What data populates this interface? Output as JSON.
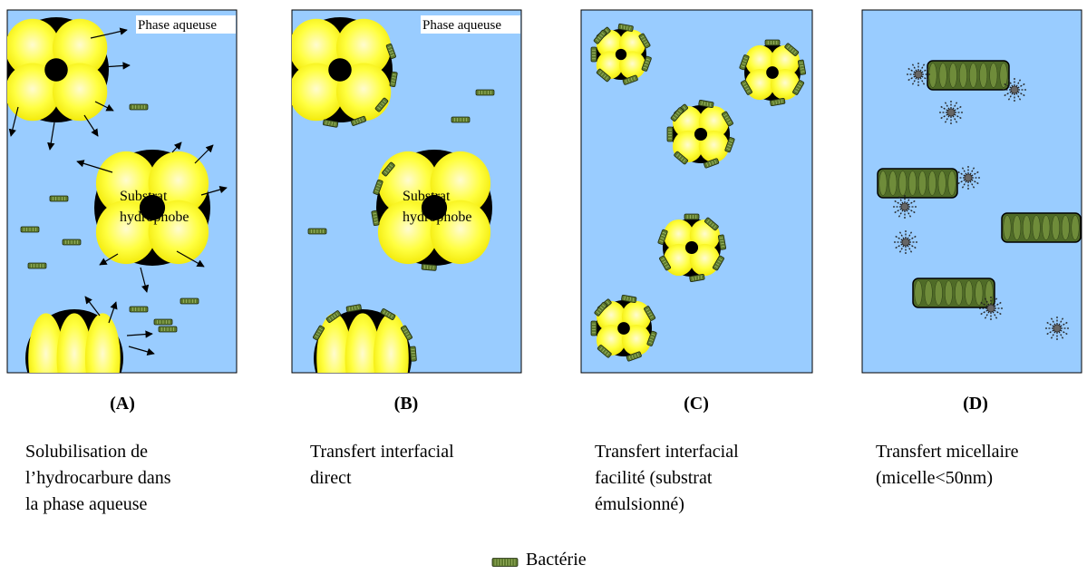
{
  "panels": [
    {
      "letter": "(A)",
      "phase_label": "Phase aqueuse",
      "substrate_label": [
        "Substrat",
        "hydrophobe"
      ],
      "caption": [
        "Solubilisation de",
        "l’hydrocarbure dans",
        "la phase aqueuse"
      ]
    },
    {
      "letter": "(B)",
      "phase_label": "Phase aqueuse",
      "substrate_label": [
        "Substrat",
        "hydrophobe"
      ],
      "caption": [
        "Transfert interfacial",
        "direct"
      ]
    },
    {
      "letter": "(C)",
      "caption": [
        "Transfert interfacial",
        "facilité (substrat",
        "émulsionné)"
      ]
    },
    {
      "letter": "(D)",
      "caption": [
        "Transfert micellaire",
        "(micelle<50nm)"
      ]
    }
  ],
  "legend": {
    "label": "Bactérie"
  },
  "colors": {
    "water": "#99ccff",
    "droplet": "#ffff33",
    "droplet_dark": "#000000",
    "bacterium": "#5e7a2e",
    "micelle": "#666666"
  }
}
